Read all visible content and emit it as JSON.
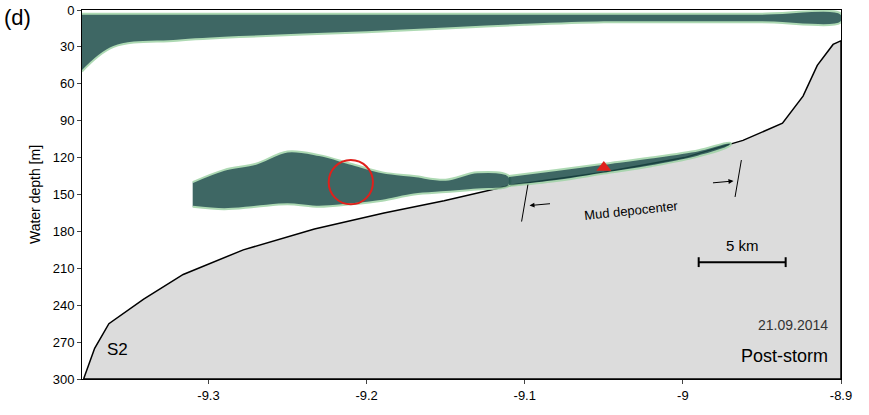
{
  "chart_data": {
    "type": "area",
    "panel_label": "(d)",
    "station": "S2",
    "date": "21.09.2014",
    "condition": "Post-storm",
    "y_label": "Water depth [m]",
    "xlim": [
      -9.38,
      -8.9
    ],
    "xticks": [
      -9.3,
      -9.2,
      -9.1,
      -9,
      -8.9
    ],
    "ylim": [
      300,
      0
    ],
    "yticks": [
      0,
      30,
      60,
      90,
      120,
      150,
      180,
      210,
      240,
      270,
      300
    ],
    "grid": false,
    "seafloor": {
      "color": "#dcdcdc",
      "x": [
        -9.379,
        -9.372,
        -9.363,
        -9.341,
        -9.316,
        -9.278,
        -9.233,
        -9.189,
        -9.151,
        -9.107,
        -9.05,
        -8.999,
        -8.962,
        -8.937,
        -8.924,
        -8.915,
        -8.905,
        -8.9
      ],
      "depth": [
        300,
        275,
        255,
        235,
        215,
        195,
        178,
        165,
        155,
        142,
        132,
        120,
        106,
        92,
        70,
        45,
        28,
        25
      ]
    },
    "series": [
      {
        "color": "#1d4d4a",
        "x": [
          -9.38,
          -9.36,
          -9.32,
          -9.28,
          -9.24,
          -9.2,
          -9.15,
          -9.1,
          -9.05,
          -9.0,
          -8.95,
          -8.9
        ],
        "top": [
          3,
          3,
          3,
          3,
          3,
          3,
          3,
          3,
          3,
          3,
          3,
          3
        ],
        "bottom": [
          50,
          30,
          25,
          22,
          20,
          18,
          15,
          12,
          10,
          10,
          10,
          10
        ]
      },
      {
        "color": "#1d4d4a",
        "x": [
          -9.31,
          -9.29,
          -9.27,
          -9.25,
          -9.23,
          -9.21,
          -9.19,
          -9.17,
          -9.15,
          -9.13,
          -9.11
        ],
        "top": [
          140,
          130,
          125,
          115,
          118,
          125,
          132,
          135,
          138,
          132,
          135
        ],
        "bottom": [
          160,
          162,
          160,
          158,
          160,
          158,
          155,
          150,
          148,
          146,
          143
        ]
      },
      {
        "color": "#1d4d4a",
        "x": [
          -9.11,
          -9.08,
          -9.05,
          -9.02,
          -8.99,
          -8.97
        ],
        "top": [
          135,
          130,
          125,
          120,
          114,
          108
        ],
        "bottom": [
          143,
          139,
          133,
          127,
          119,
          110
        ]
      }
    ],
    "circle": {
      "x": -9.21,
      "y": 140,
      "rx": 0.014,
      "ry": 18,
      "color": "#e0201b"
    },
    "triangle": {
      "x": -9.05,
      "y": 128,
      "color": "#e0201b"
    },
    "bracket": {
      "label": "Mud depocenter",
      "x": [
        -9.1,
        -8.965
      ],
      "y": [
        157,
        137
      ]
    },
    "scale_bar": {
      "label": "5 km",
      "x": [
        -8.99,
        -8.935
      ],
      "y": 205
    }
  }
}
